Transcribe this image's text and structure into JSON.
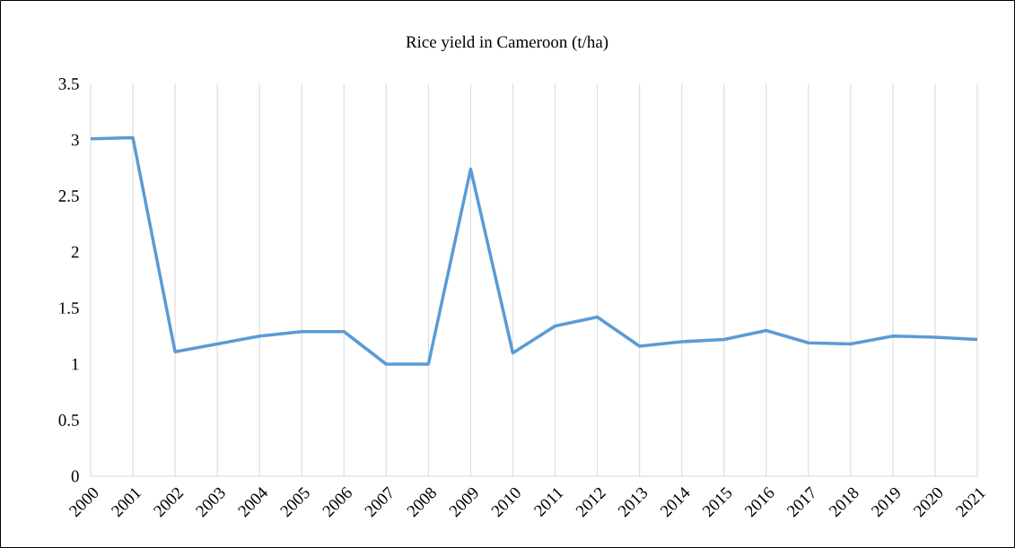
{
  "chart_data": {
    "type": "line",
    "title": "Rice yield in Cameroon (t/ha)",
    "categories": [
      "2000",
      "2001",
      "2002",
      "2003",
      "2004",
      "2005",
      "2006",
      "2007",
      "2008",
      "2009",
      "2010",
      "2011",
      "2012",
      "2013",
      "2014",
      "2015",
      "2016",
      "2017",
      "2018",
      "2019",
      "2020",
      "2021"
    ],
    "values": [
      3.01,
      3.02,
      1.11,
      1.18,
      1.25,
      1.29,
      1.29,
      1.0,
      1.0,
      2.74,
      1.1,
      1.34,
      1.42,
      1.16,
      1.2,
      1.22,
      1.3,
      1.19,
      1.18,
      1.25,
      1.24,
      1.22
    ],
    "color": "#5b9bd5",
    "ylim": [
      0,
      3.5
    ],
    "yticks": [
      0,
      0.5,
      1,
      1.5,
      2,
      2.5,
      3,
      3.5
    ],
    "grid": "x",
    "marker": "none",
    "line_style": "solid"
  }
}
